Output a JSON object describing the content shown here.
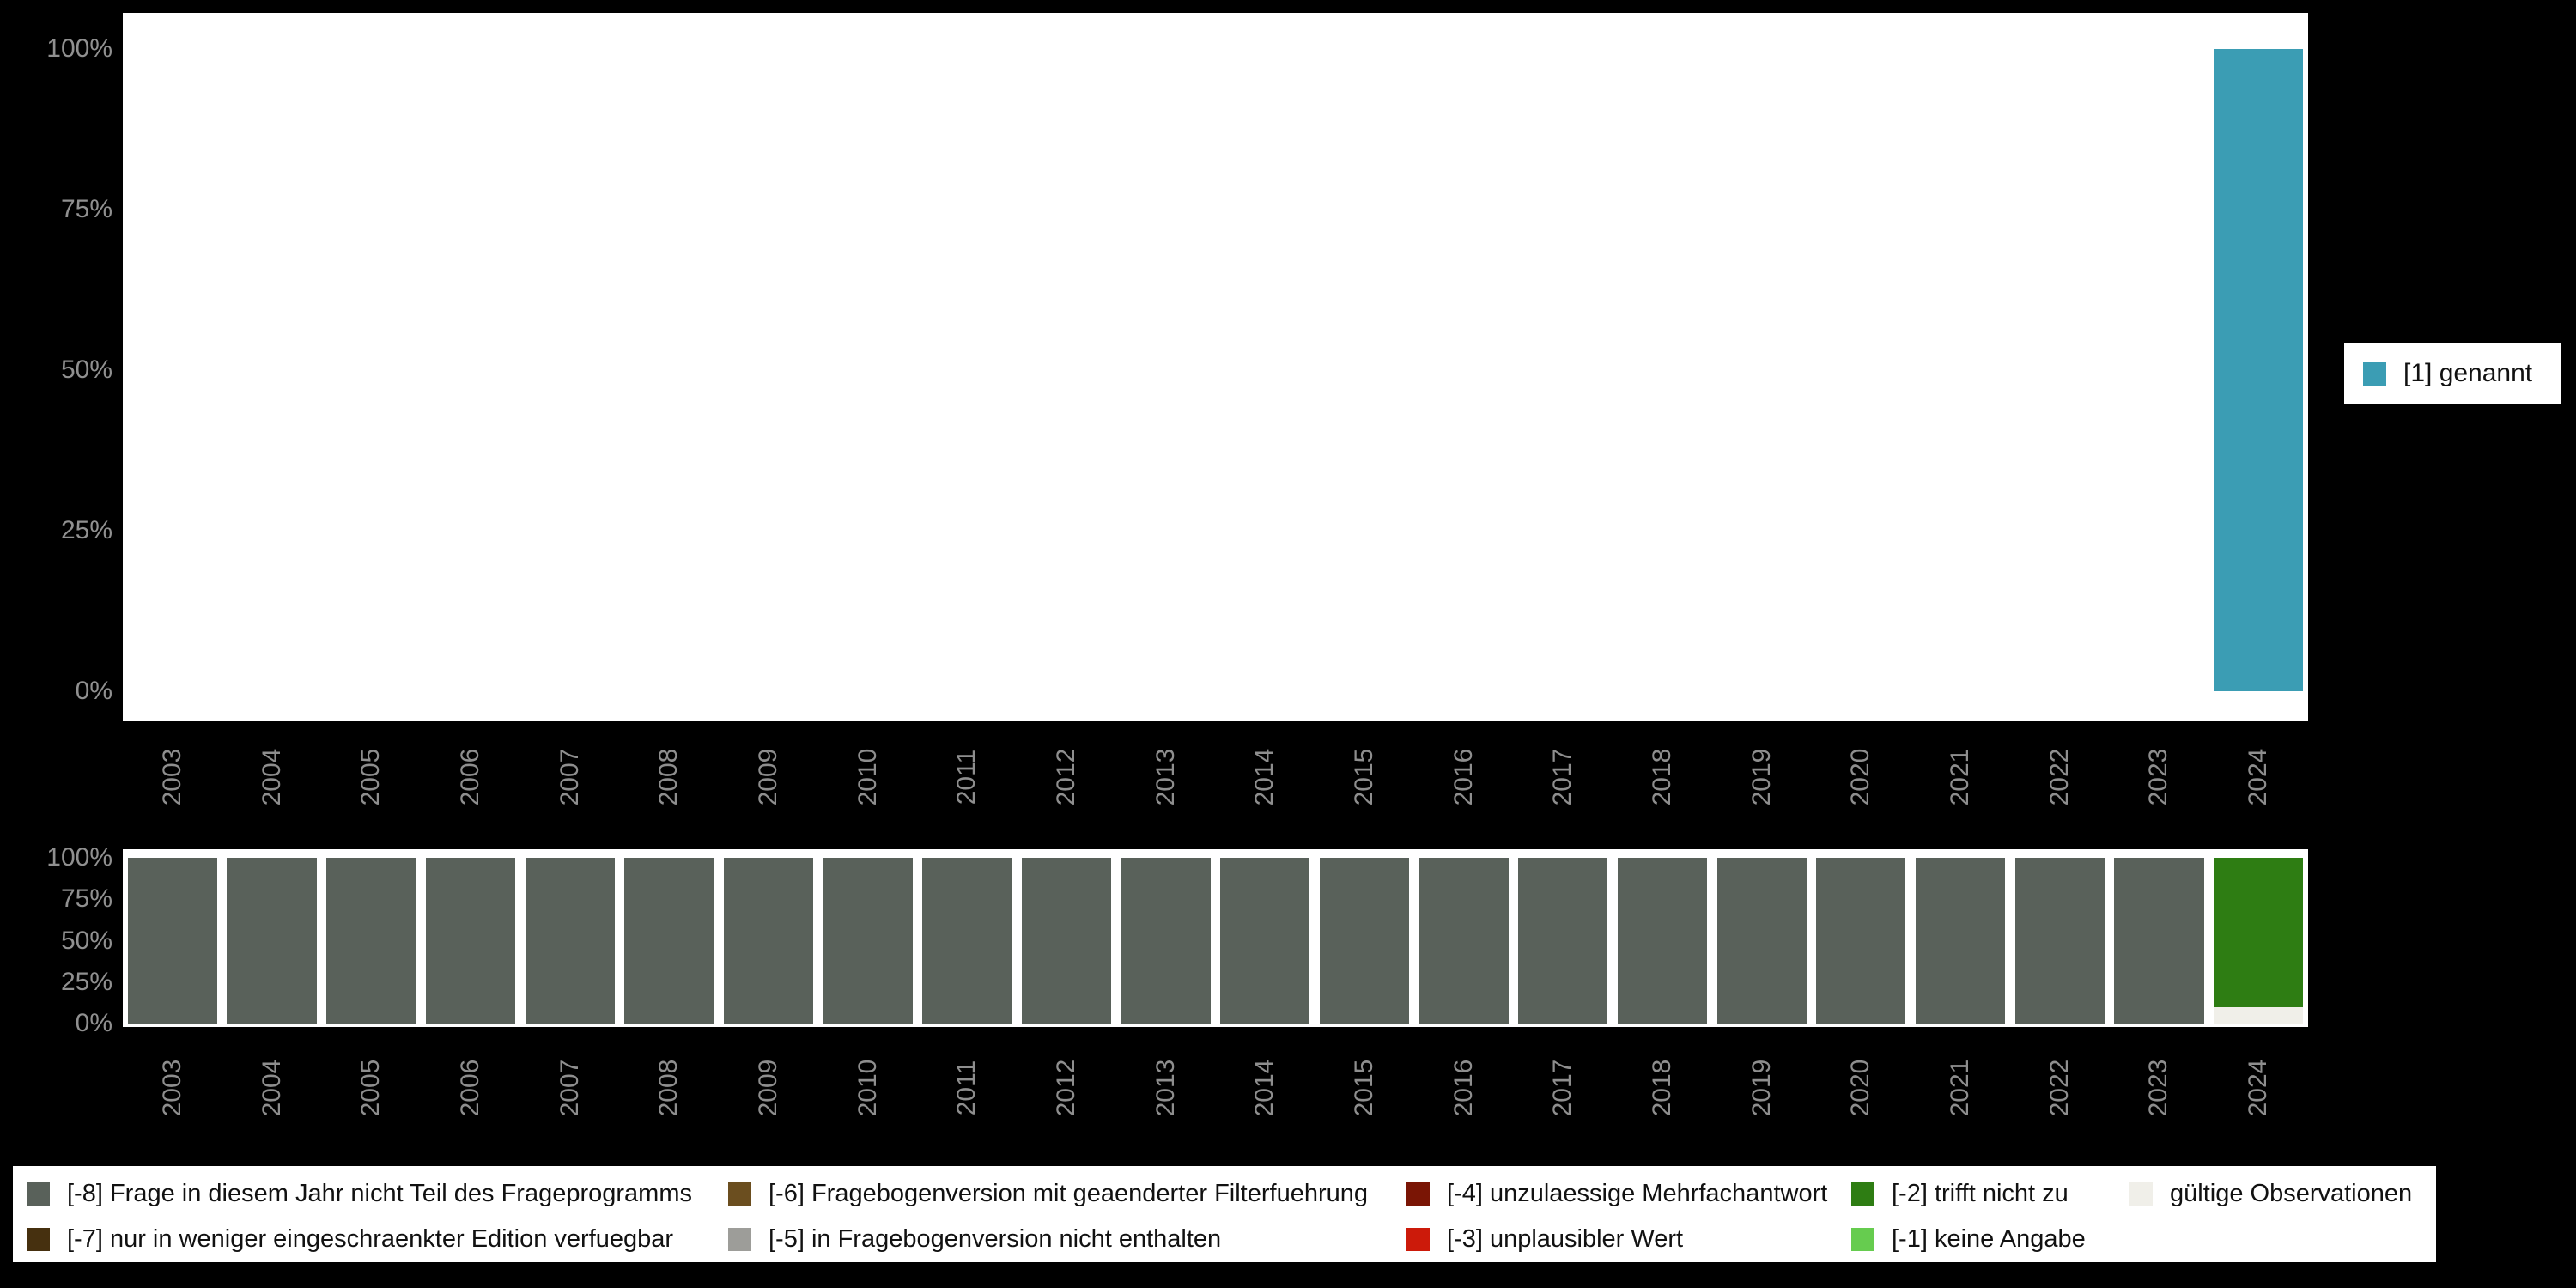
{
  "page": {
    "background_color": "#000000",
    "panel_color": "#ffffff",
    "axis_text_color": "#909090"
  },
  "years": [
    "2003",
    "2004",
    "2005",
    "2006",
    "2007",
    "2008",
    "2009",
    "2010",
    "2011",
    "2012",
    "2013",
    "2014",
    "2015",
    "2016",
    "2017",
    "2018",
    "2019",
    "2020",
    "2021",
    "2022",
    "2023",
    "2024"
  ],
  "yticks": [
    {
      "label": "100%",
      "value": 100
    },
    {
      "label": "75%",
      "value": 75
    },
    {
      "label": "50%",
      "value": 50
    },
    {
      "label": "25%",
      "value": 25
    },
    {
      "label": "0%",
      "value": 0
    }
  ],
  "chart_data": [
    {
      "type": "bar",
      "title": "",
      "xlabel": "",
      "ylabel": "",
      "grid": false,
      "ylim": [
        0,
        100
      ],
      "yticks": [
        "100%",
        "75%",
        "50%",
        "25%",
        "0%"
      ],
      "legend_position": "right",
      "categories": [
        "2003",
        "2004",
        "2005",
        "2006",
        "2007",
        "2008",
        "2009",
        "2010",
        "2011",
        "2012",
        "2013",
        "2014",
        "2015",
        "2016",
        "2017",
        "2018",
        "2019",
        "2020",
        "2021",
        "2022",
        "2023",
        "2024"
      ],
      "series": [
        {
          "name": "[1] genannt",
          "color": "#3b9db4",
          "values": [
            0,
            0,
            0,
            0,
            0,
            0,
            0,
            0,
            0,
            0,
            0,
            0,
            0,
            0,
            0,
            0,
            0,
            0,
            0,
            0,
            0,
            100
          ]
        }
      ]
    },
    {
      "type": "stacked-bar",
      "title": "",
      "xlabel": "",
      "ylabel": "",
      "grid": false,
      "ylim": [
        0,
        100
      ],
      "yticks": [
        "100%",
        "75%",
        "50%",
        "25%",
        "0%"
      ],
      "legend_position": "bottom",
      "stack_order": "bottom-to-top",
      "categories": [
        "2003",
        "2004",
        "2005",
        "2006",
        "2007",
        "2008",
        "2009",
        "2010",
        "2011",
        "2012",
        "2013",
        "2014",
        "2015",
        "2016",
        "2017",
        "2018",
        "2019",
        "2020",
        "2021",
        "2022",
        "2023",
        "2024"
      ],
      "series": [
        {
          "name": "gültige Observationen",
          "color": "#f0efe9",
          "values": [
            0,
            0,
            0,
            0,
            0,
            0,
            0,
            0,
            0,
            0,
            0,
            0,
            0,
            0,
            0,
            0,
            0,
            0,
            0,
            0,
            0,
            10
          ]
        },
        {
          "name": "[-2] trifft nicht zu",
          "color": "#2e7d13",
          "values": [
            0,
            0,
            0,
            0,
            0,
            0,
            0,
            0,
            0,
            0,
            0,
            0,
            0,
            0,
            0,
            0,
            0,
            0,
            0,
            0,
            0,
            90
          ]
        },
        {
          "name": "[-8] Frage in diesem Jahr nicht Teil des Frageprogramms",
          "color": "#59615a",
          "values": [
            100,
            100,
            100,
            100,
            100,
            100,
            100,
            100,
            100,
            100,
            100,
            100,
            100,
            100,
            100,
            100,
            100,
            100,
            100,
            100,
            100,
            0
          ]
        }
      ]
    }
  ],
  "top_legend": {
    "items": [
      {
        "label": "[1] genannt",
        "color": "#3b9db4"
      }
    ]
  },
  "missing_legend": {
    "columns": [
      {
        "items": [
          {
            "label": "[-8] Frage in diesem Jahr nicht Teil des Frageprogramms",
            "color": "#59615a"
          },
          {
            "label": "[-7] nur in weniger eingeschraenkter Edition verfuegbar",
            "color": "#46300f"
          }
        ]
      },
      {
        "items": [
          {
            "label": "[-6] Fragebogenversion mit geaenderter Filterfuehrung",
            "color": "#6b4e1f"
          },
          {
            "label": "[-5] in Fragebogenversion nicht enthalten",
            "color": "#9d9d99"
          }
        ]
      },
      {
        "items": [
          {
            "label": "[-4] unzulaessige Mehrfachantwort",
            "color": "#7a1505"
          },
          {
            "label": "[-3] unplausibler Wert",
            "color": "#cc1a0a"
          }
        ]
      },
      {
        "items": [
          {
            "label": "[-2] trifft nicht zu",
            "color": "#2e7d13"
          },
          {
            "label": "[-1] keine Angabe",
            "color": "#66cc4f"
          }
        ]
      },
      {
        "items": [
          {
            "label": "gültige Observationen",
            "color": "#f0efe9"
          }
        ]
      }
    ]
  }
}
